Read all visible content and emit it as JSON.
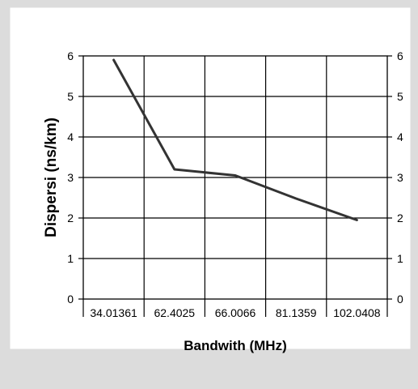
{
  "chart_data": {
    "type": "line",
    "title": "",
    "xlabel": "Bandwith (MHz)",
    "ylabel": "Dispersi (ns/km)",
    "categories": [
      "34.01361",
      "62.4025",
      "66.0066",
      "81.1359",
      "102.0408"
    ],
    "series": [
      {
        "values": [
          5.9,
          3.2,
          3.05,
          2.48,
          1.95
        ]
      }
    ],
    "ylim": [
      0,
      6
    ],
    "yticks": [
      "0",
      "1",
      "2",
      "3",
      "4",
      "5",
      "6"
    ],
    "grid": true,
    "legend": "none",
    "secondary_y_axis": true
  },
  "colors": {
    "page_background": "#dcdcdc",
    "chart_area_background": "#ffffff",
    "plot_background": "#ffffff",
    "line": "#333333",
    "grid": "#000000",
    "text": "#000000"
  }
}
